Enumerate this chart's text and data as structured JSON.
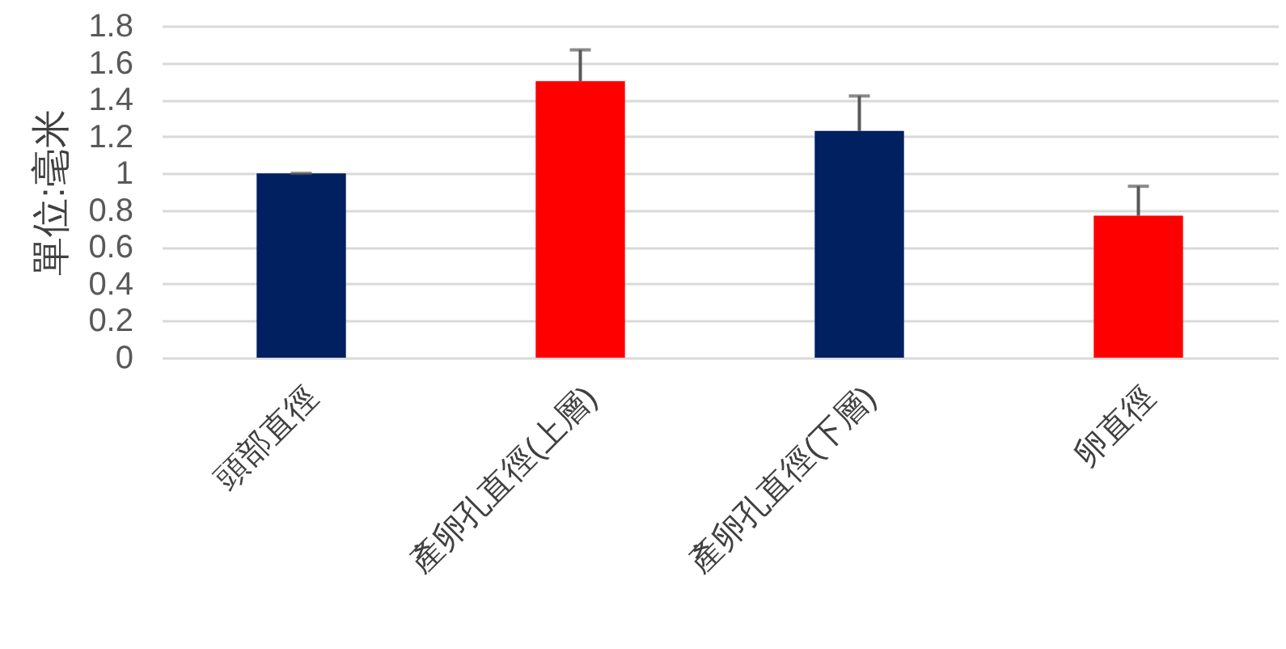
{
  "chart_data": {
    "type": "bar",
    "ylabel": "單位:毫米",
    "categories": [
      "頭部直徑",
      "產卵孔直徑(上層)",
      "產卵孔直徑(下層)",
      "卵直徑"
    ],
    "values": [
      1.0,
      1.5,
      1.23,
      0.77
    ],
    "colors": [
      "#002060",
      "#ff0000",
      "#002060",
      "#ff0000"
    ],
    "errors": [
      [
        1.0,
        1.0
      ],
      [
        1.5,
        1.67
      ],
      [
        1.23,
        1.42
      ],
      [
        0.77,
        0.93
      ]
    ],
    "ylim": [
      0,
      1.8
    ],
    "yticks": [
      0,
      0.2,
      0.4,
      0.6,
      0.8,
      1,
      1.2,
      1.4,
      1.6,
      1.8
    ],
    "grid": "y"
  }
}
